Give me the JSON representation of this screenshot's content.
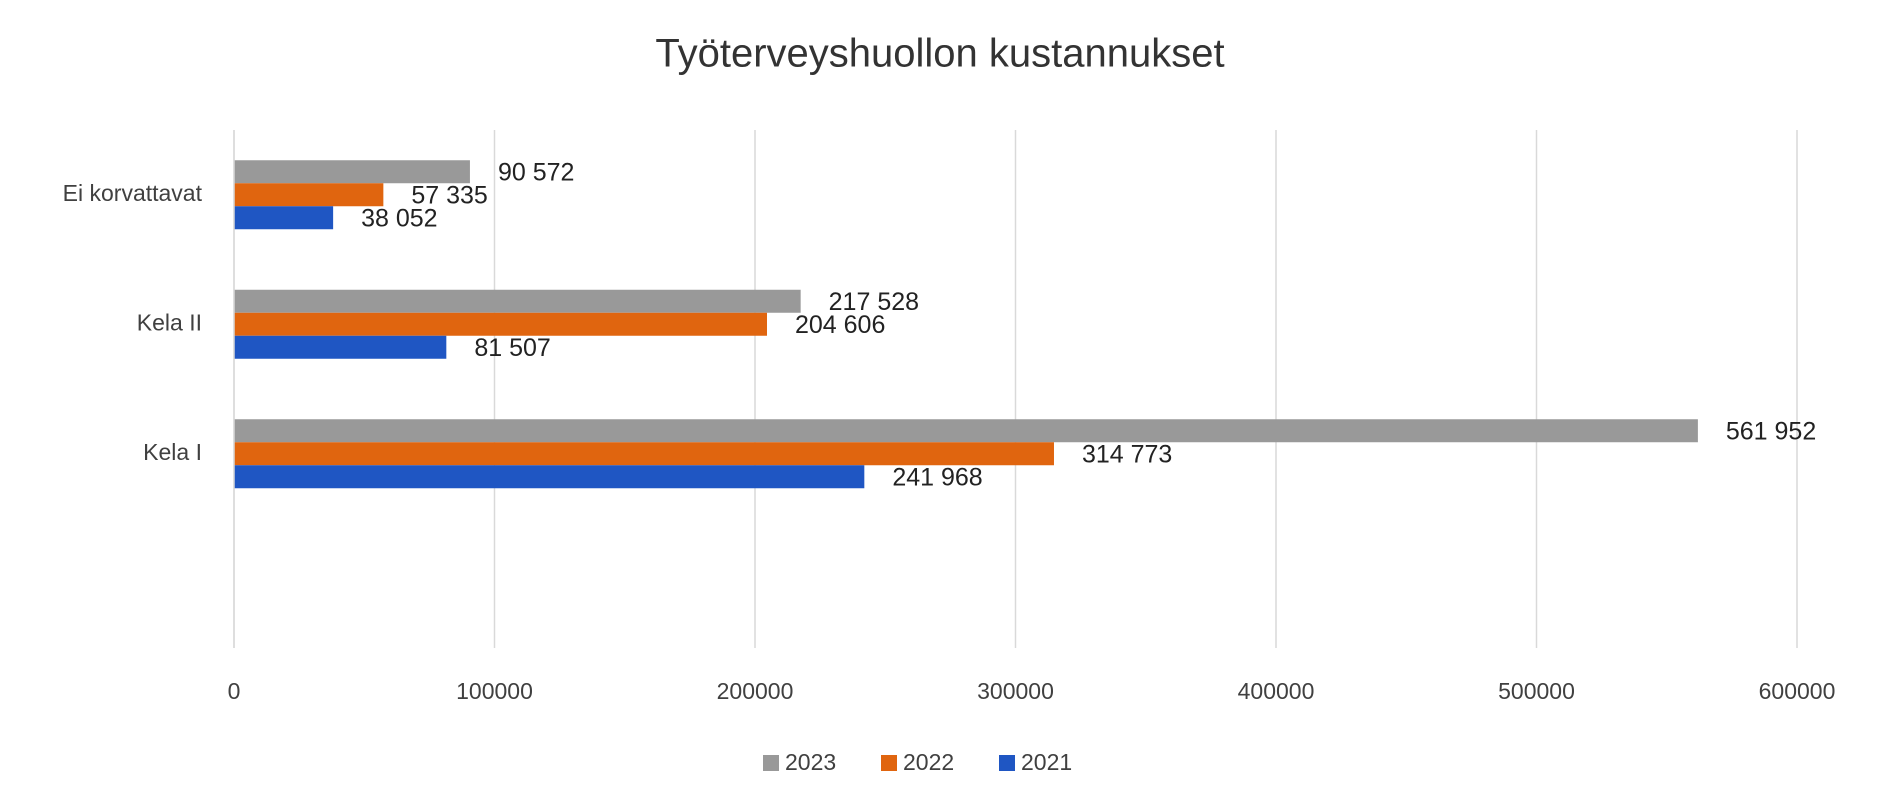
{
  "chart_data": {
    "type": "bar",
    "orientation": "horizontal",
    "title": "Työterveyshuollon kustannukset",
    "categories": [
      "Ei korvattavat",
      "Kela II",
      "Kela I",
      null
    ],
    "series": [
      {
        "name": "2023",
        "color": "#999999",
        "values": [
          90572,
          217528,
          561952,
          null
        ],
        "value_labels": [
          "90 572",
          "217 528",
          "561 952",
          null
        ]
      },
      {
        "name": "2022",
        "color": "#e0650f",
        "values": [
          57335,
          204606,
          314773,
          null
        ],
        "value_labels": [
          "57 335",
          "204 606",
          "314 773",
          null
        ]
      },
      {
        "name": "2021",
        "color": "#1f56c3",
        "values": [
          38052,
          81507,
          241968,
          null
        ],
        "value_labels": [
          "38 052",
          "81 507",
          "241 968",
          null
        ]
      }
    ],
    "xlim": [
      0,
      600000
    ],
    "xticks": [
      0,
      100000,
      200000,
      300000,
      400000,
      500000,
      600000
    ],
    "grid": true,
    "legend": "bottom"
  }
}
